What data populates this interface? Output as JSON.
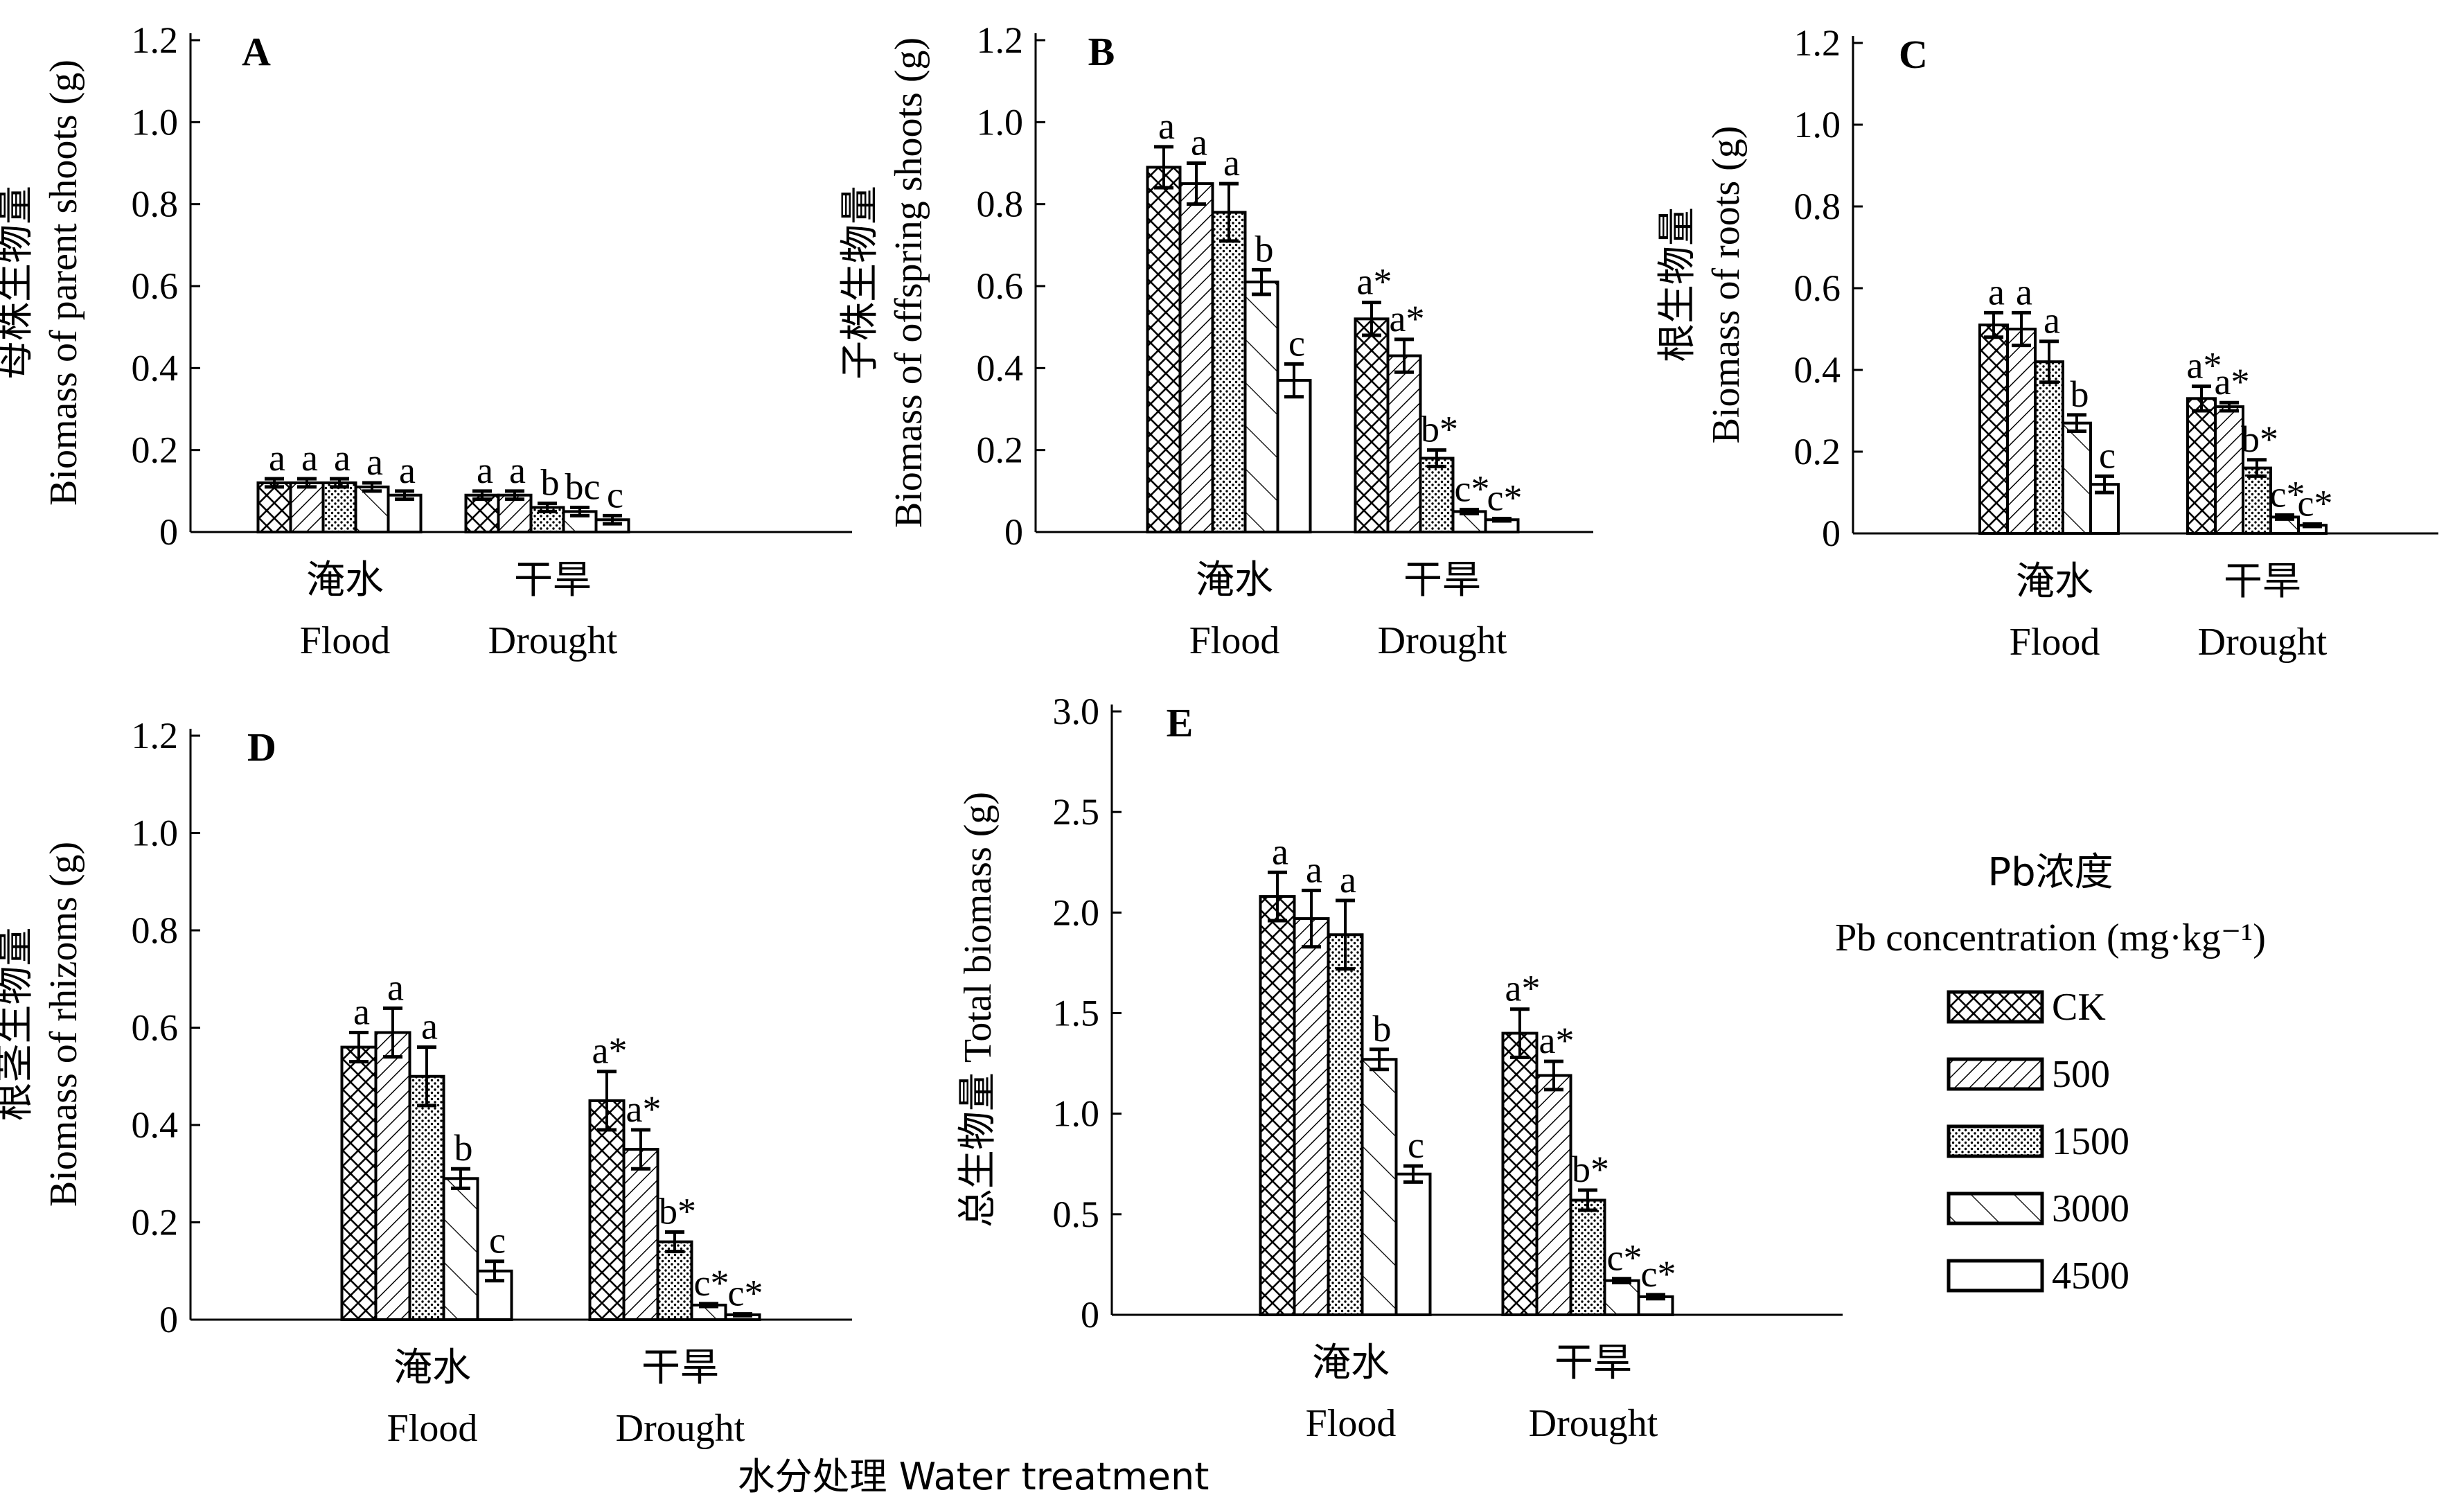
{
  "figure": {
    "shared_xlabel": "水分处理 Water treatment"
  },
  "legend": {
    "title_cn": "Pb浓度",
    "title_en": "Pb concentration (mg·kg⁻¹)",
    "items": [
      "CK",
      "500",
      "1500",
      "3000",
      "4500"
    ]
  },
  "chart_data": [
    {
      "type": "bar",
      "panel": "A",
      "ylabel_cn": "母株生物量",
      "ylabel_en": "Biomass of parent shoots (g)",
      "ylim": [
        0,
        1.2
      ],
      "yticks": [
        "0",
        "0.2",
        "0.4",
        "0.6",
        "0.8",
        "1.0",
        "1.2"
      ],
      "categories_cn": [
        "淹水",
        "干旱"
      ],
      "categories": [
        "Flood",
        "Drought"
      ],
      "series": [
        {
          "name": "CK",
          "values": [
            0.12,
            0.09
          ],
          "errors": [
            0.01,
            0.01
          ],
          "labels": [
            "a",
            "a"
          ]
        },
        {
          "name": "500",
          "values": [
            0.12,
            0.09
          ],
          "errors": [
            0.01,
            0.01
          ],
          "labels": [
            "a",
            "a"
          ]
        },
        {
          "name": "1500",
          "values": [
            0.12,
            0.06
          ],
          "errors": [
            0.01,
            0.01
          ],
          "labels": [
            "a",
            "b"
          ]
        },
        {
          "name": "3000",
          "values": [
            0.11,
            0.05
          ],
          "errors": [
            0.01,
            0.01
          ],
          "labels": [
            "a",
            "bc"
          ]
        },
        {
          "name": "4500",
          "values": [
            0.09,
            0.03
          ],
          "errors": [
            0.01,
            0.01
          ],
          "labels": [
            "a",
            "c"
          ]
        }
      ]
    },
    {
      "type": "bar",
      "panel": "B",
      "ylabel_cn": "子株生物量",
      "ylabel_en": "Biomass of offspring shoots (g)",
      "ylim": [
        0,
        1.2
      ],
      "yticks": [
        "0",
        "0.2",
        "0.4",
        "0.6",
        "0.8",
        "1.0",
        "1.2"
      ],
      "categories_cn": [
        "淹水",
        "干旱"
      ],
      "categories": [
        "Flood",
        "Drought"
      ],
      "series": [
        {
          "name": "CK",
          "values": [
            0.89,
            0.52
          ],
          "errors": [
            0.05,
            0.04
          ],
          "labels": [
            "a",
            "a*"
          ]
        },
        {
          "name": "500",
          "values": [
            0.85,
            0.43
          ],
          "errors": [
            0.05,
            0.04
          ],
          "labels": [
            "a",
            "a*"
          ]
        },
        {
          "name": "1500",
          "values": [
            0.78,
            0.18
          ],
          "errors": [
            0.07,
            0.02
          ],
          "labels": [
            "a",
            "b*"
          ]
        },
        {
          "name": "3000",
          "values": [
            0.61,
            0.05
          ],
          "errors": [
            0.03,
            0.005
          ],
          "labels": [
            "b",
            "c*"
          ]
        },
        {
          "name": "4500",
          "values": [
            0.37,
            0.03
          ],
          "errors": [
            0.04,
            0.003
          ],
          "labels": [
            "c",
            "c*"
          ]
        }
      ]
    },
    {
      "type": "bar",
      "panel": "C",
      "ylabel_cn": "根生物量",
      "ylabel_en": "Biomass of roots (g)",
      "ylim": [
        0,
        1.2
      ],
      "yticks": [
        "0",
        "0.2",
        "0.4",
        "0.6",
        "0.8",
        "1.0",
        "1.2"
      ],
      "categories_cn": [
        "淹水",
        "干旱"
      ],
      "categories": [
        "Flood",
        "Drought"
      ],
      "series": [
        {
          "name": "CK",
          "values": [
            0.51,
            0.33
          ],
          "errors": [
            0.03,
            0.03
          ],
          "labels": [
            "a",
            "a*"
          ]
        },
        {
          "name": "500",
          "values": [
            0.5,
            0.31
          ],
          "errors": [
            0.04,
            0.01
          ],
          "labels": [
            "a",
            "a*"
          ]
        },
        {
          "name": "1500",
          "values": [
            0.42,
            0.16
          ],
          "errors": [
            0.05,
            0.02
          ],
          "labels": [
            "a",
            "b*"
          ]
        },
        {
          "name": "3000",
          "values": [
            0.27,
            0.04
          ],
          "errors": [
            0.02,
            0.005
          ],
          "labels": [
            "b",
            "c*"
          ]
        },
        {
          "name": "4500",
          "values": [
            0.12,
            0.02
          ],
          "errors": [
            0.02,
            0.003
          ],
          "labels": [
            "c",
            "c*"
          ]
        }
      ]
    },
    {
      "type": "bar",
      "panel": "D",
      "ylabel_cn": "根茎生物量",
      "ylabel_en": "Biomass of rhizoms (g)",
      "ylim": [
        0,
        1.2
      ],
      "yticks": [
        "0",
        "0.2",
        "0.4",
        "0.6",
        "0.8",
        "1.0",
        "1.2"
      ],
      "categories_cn": [
        "淹水",
        "干旱"
      ],
      "categories": [
        "Flood",
        "Drought"
      ],
      "series": [
        {
          "name": "CK",
          "values": [
            0.56,
            0.45
          ],
          "errors": [
            0.03,
            0.06
          ],
          "labels": [
            "a",
            "a*"
          ]
        },
        {
          "name": "500",
          "values": [
            0.59,
            0.35
          ],
          "errors": [
            0.05,
            0.04
          ],
          "labels": [
            "a",
            "a*"
          ]
        },
        {
          "name": "1500",
          "values": [
            0.5,
            0.16
          ],
          "errors": [
            0.06,
            0.02
          ],
          "labels": [
            "a",
            "b*"
          ]
        },
        {
          "name": "3000",
          "values": [
            0.29,
            0.03
          ],
          "errors": [
            0.02,
            0.003
          ],
          "labels": [
            "b",
            "c*"
          ]
        },
        {
          "name": "4500",
          "values": [
            0.1,
            0.01
          ],
          "errors": [
            0.02,
            0.002
          ],
          "labels": [
            "c",
            "c*"
          ]
        }
      ]
    },
    {
      "type": "bar",
      "panel": "E",
      "ylabel_cn": "总生物量",
      "ylabel_en": "Total biomass (g)",
      "ylim": [
        0,
        3.0
      ],
      "yticks": [
        "0",
        "0.5",
        "1.0",
        "1.5",
        "2.0",
        "2.5",
        "3.0"
      ],
      "categories_cn": [
        "淹水",
        "干旱"
      ],
      "categories": [
        "Flood",
        "Drought"
      ],
      "series": [
        {
          "name": "CK",
          "values": [
            2.08,
            1.4
          ],
          "errors": [
            0.12,
            0.12
          ],
          "labels": [
            "a",
            "a*"
          ]
        },
        {
          "name": "500",
          "values": [
            1.97,
            1.19
          ],
          "errors": [
            0.14,
            0.07
          ],
          "labels": [
            "a",
            "a*"
          ]
        },
        {
          "name": "1500",
          "values": [
            1.89,
            0.57
          ],
          "errors": [
            0.17,
            0.05
          ],
          "labels": [
            "a",
            "b*"
          ]
        },
        {
          "name": "3000",
          "values": [
            1.27,
            0.17
          ],
          "errors": [
            0.05,
            0.01
          ],
          "labels": [
            "b",
            "c*"
          ]
        },
        {
          "name": "4500",
          "values": [
            0.7,
            0.09
          ],
          "errors": [
            0.04,
            0.01
          ],
          "labels": [
            "c",
            "c*"
          ]
        }
      ]
    }
  ]
}
